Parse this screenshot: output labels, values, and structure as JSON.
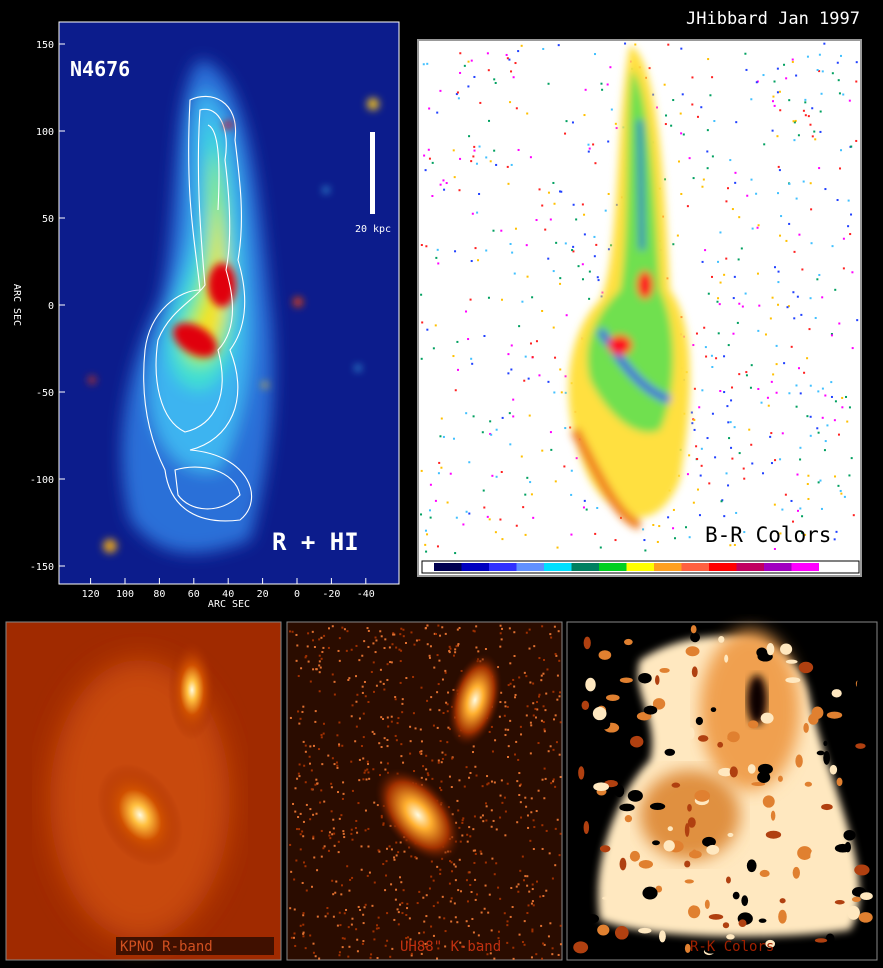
{
  "header": {
    "credit": "JHibbard Jan 1997"
  },
  "top_left_panel": {
    "label": "N4676",
    "scale_bar": "20 kpc",
    "caption": "R + HI",
    "x_axis_label": "ARC SEC",
    "y_axis_label": "ARC SEC",
    "xticks": [
      120,
      100,
      80,
      60,
      40,
      20,
      0,
      -20,
      -40
    ],
    "yticks": [
      150,
      100,
      50,
      0,
      -50,
      -100,
      -150
    ]
  },
  "top_right_panel": {
    "caption": "B-R Colors"
  },
  "bottom_panels": [
    {
      "caption": "KPNO R-band"
    },
    {
      "caption": "UH88\" K-band"
    },
    {
      "caption": "R-K Colors"
    }
  ]
}
